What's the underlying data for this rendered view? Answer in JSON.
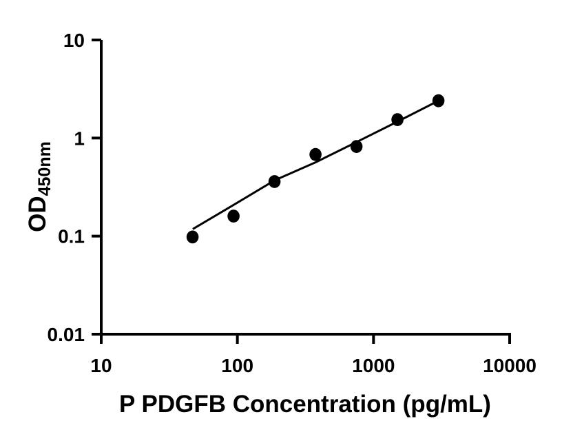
{
  "figure": {
    "background_color": "#ffffff",
    "ink_color": "#000000"
  },
  "chart_data": {
    "type": "scatter",
    "title": "",
    "xlabel": "P PDGFB Concentration (pg/mL)",
    "ylabel_main": "OD",
    "ylabel_sub": "450nm",
    "x_scale": "log10",
    "y_scale": "log10",
    "xlim": [
      10,
      10000
    ],
    "ylim": [
      0.01,
      10
    ],
    "x_ticks": [
      10,
      100,
      1000,
      10000
    ],
    "x_tick_labels": [
      "10",
      "100",
      "1000",
      "10000"
    ],
    "y_ticks": [
      10,
      1,
      0.1,
      0.01
    ],
    "y_tick_labels": [
      "10",
      "1",
      "0.1",
      "0.01"
    ],
    "grid": false,
    "legend": "none",
    "marker_color": "#000000",
    "line_color": "#000000",
    "series": [
      {
        "name": "standard-points",
        "kind": "scatter",
        "marker": "filled-circle",
        "points": [
          {
            "x": 46.88,
            "od": 0.098
          },
          {
            "x": 93.75,
            "od": 0.16
          },
          {
            "x": 187.5,
            "od": 0.36
          },
          {
            "x": 375,
            "od": 0.68
          },
          {
            "x": 750,
            "od": 0.82
          },
          {
            "x": 1500,
            "od": 1.54
          },
          {
            "x": 3000,
            "od": 2.4
          }
        ]
      },
      {
        "name": "fit-line",
        "kind": "line",
        "points": [
          {
            "x": 47,
            "od": 0.118
          },
          {
            "x": 93.75,
            "od": 0.208
          },
          {
            "x": 187.5,
            "od": 0.37
          },
          {
            "x": 375,
            "od": 0.565
          },
          {
            "x": 750,
            "od": 0.91
          },
          {
            "x": 1500,
            "od": 1.47
          },
          {
            "x": 3000,
            "od": 2.4
          }
        ]
      }
    ]
  }
}
